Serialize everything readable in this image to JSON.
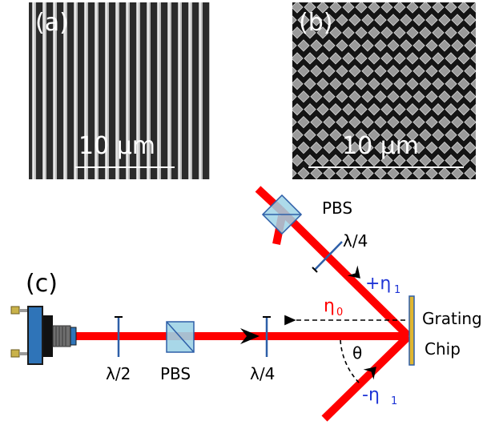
{
  "panels": {
    "a": {
      "letter": "(a)",
      "scale": "10 μm",
      "kind": "line-grating"
    },
    "b": {
      "letter": "(b)",
      "scale": "10 μm",
      "kind": "square-grating"
    }
  },
  "diagram": {
    "letter": "(c)",
    "labels": {
      "pbs_top": "PBS",
      "qwp_top": "λ/4",
      "hwp": "λ/2",
      "pbs_bottom": "PBS",
      "qwp_bottom": "λ/4",
      "grating_line1": "Grating",
      "grating_line2": "Chip",
      "theta": "θ",
      "eta_plus_sign": "+η",
      "eta_plus_sub": "1",
      "eta_zero": "η",
      "eta_zero_sub": "0",
      "eta_minus_sign": "-η",
      "eta_minus_sub": "1"
    },
    "colors": {
      "beam": "#ff0000",
      "optic": "#2e5fa8",
      "cube": "#9fd3e6",
      "grating": "#e0b630",
      "order_label": "#1f35d6",
      "eta0_label": "#ff0000",
      "text": "#000000"
    }
  }
}
